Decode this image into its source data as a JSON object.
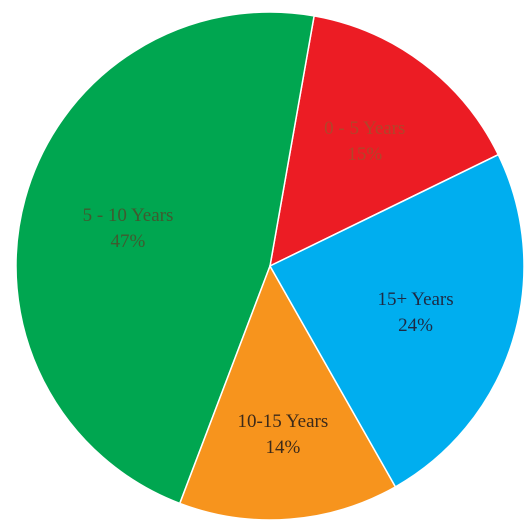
{
  "chart_data": {
    "type": "pie",
    "title": "",
    "slices": [
      {
        "label": "0 - 5 Years",
        "value": 15,
        "display": "15%",
        "color": "#ec1c24",
        "text_color": "#b0462a"
      },
      {
        "label": "5 - 10 Years",
        "value": 47,
        "display": "47%",
        "color": "#00a650",
        "text_color": "#3f5a2f"
      },
      {
        "label": "10-15 Years",
        "value": 14,
        "display": "14%",
        "color": "#f7941d",
        "text_color": "#3c2a1a"
      },
      {
        "label": "15+ Years",
        "value": 24,
        "display": "24%",
        "color": "#00aeef",
        "text_color": "#1e2a44"
      }
    ],
    "legend": "none"
  }
}
